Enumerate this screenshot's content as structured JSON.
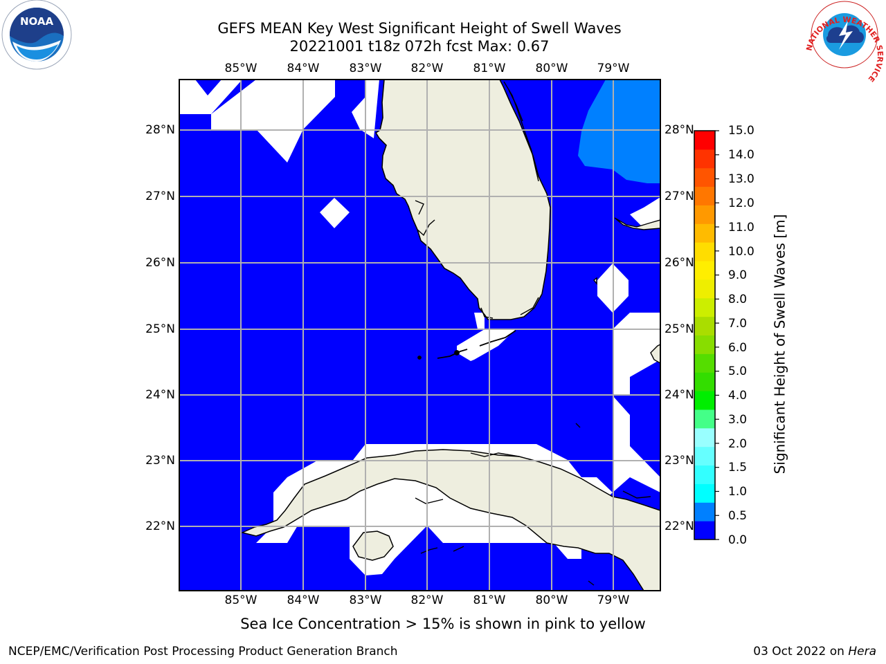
{
  "title_line1": "GEFS MEAN Key West Significant Height of Swell Waves",
  "title_line2": "20221001 t18z 072h fcst   Max: 0.67",
  "map": {
    "lon_ticks": [
      "85°W",
      "84°W",
      "83°W",
      "82°W",
      "81°W",
      "80°W",
      "79°W"
    ],
    "lat_ticks": [
      "28°N",
      "27°N",
      "26°N",
      "25°N",
      "24°N",
      "23°N",
      "22°N"
    ],
    "lon_range": [
      -86.0,
      -78.25
    ],
    "lat_range": [
      21.0,
      28.75
    ],
    "colors": {
      "ocean": "#0000ff",
      "swell_0_5": "#0080ff",
      "land": "#eeeedf",
      "missing": "#ffffff",
      "grid": "#b0b0b0"
    }
  },
  "colorbar": {
    "label": "Significant Height of Swell Waves [m]",
    "ticks": [
      "15.0",
      "14.0",
      "13.0",
      "12.0",
      "11.0",
      "10.0",
      "9.0",
      "8.0",
      "7.0",
      "6.0",
      "5.0",
      "4.0",
      "3.0",
      "2.0",
      "1.5",
      "1.0",
      "0.5",
      "0.0"
    ],
    "colors": [
      "#0000ff",
      "#0080ff",
      "#00ffff",
      "#33ffff",
      "#66ffff",
      "#99ffff",
      "#44ff88",
      "#00ee00",
      "#33dd00",
      "#55dd00",
      "#88dd00",
      "#aadd00",
      "#ccee00",
      "#eeee00",
      "#ffee00",
      "#ffdd00",
      "#ffbb00",
      "#ff9900",
      "#ff7700",
      "#ff5500",
      "#ff3300",
      "#ff0000"
    ]
  },
  "footnote": "Sea Ice Concentration > 15% is shown in pink to yellow",
  "credit": "NCEP/EMC/Verification Post Processing Product Generation Branch",
  "date_prefix": "03 Oct 2022 on ",
  "date_host": "Hera",
  "logos": {
    "noaa": "NOAA",
    "nws_ring": "NATIONAL WEATHER SERVICE"
  }
}
